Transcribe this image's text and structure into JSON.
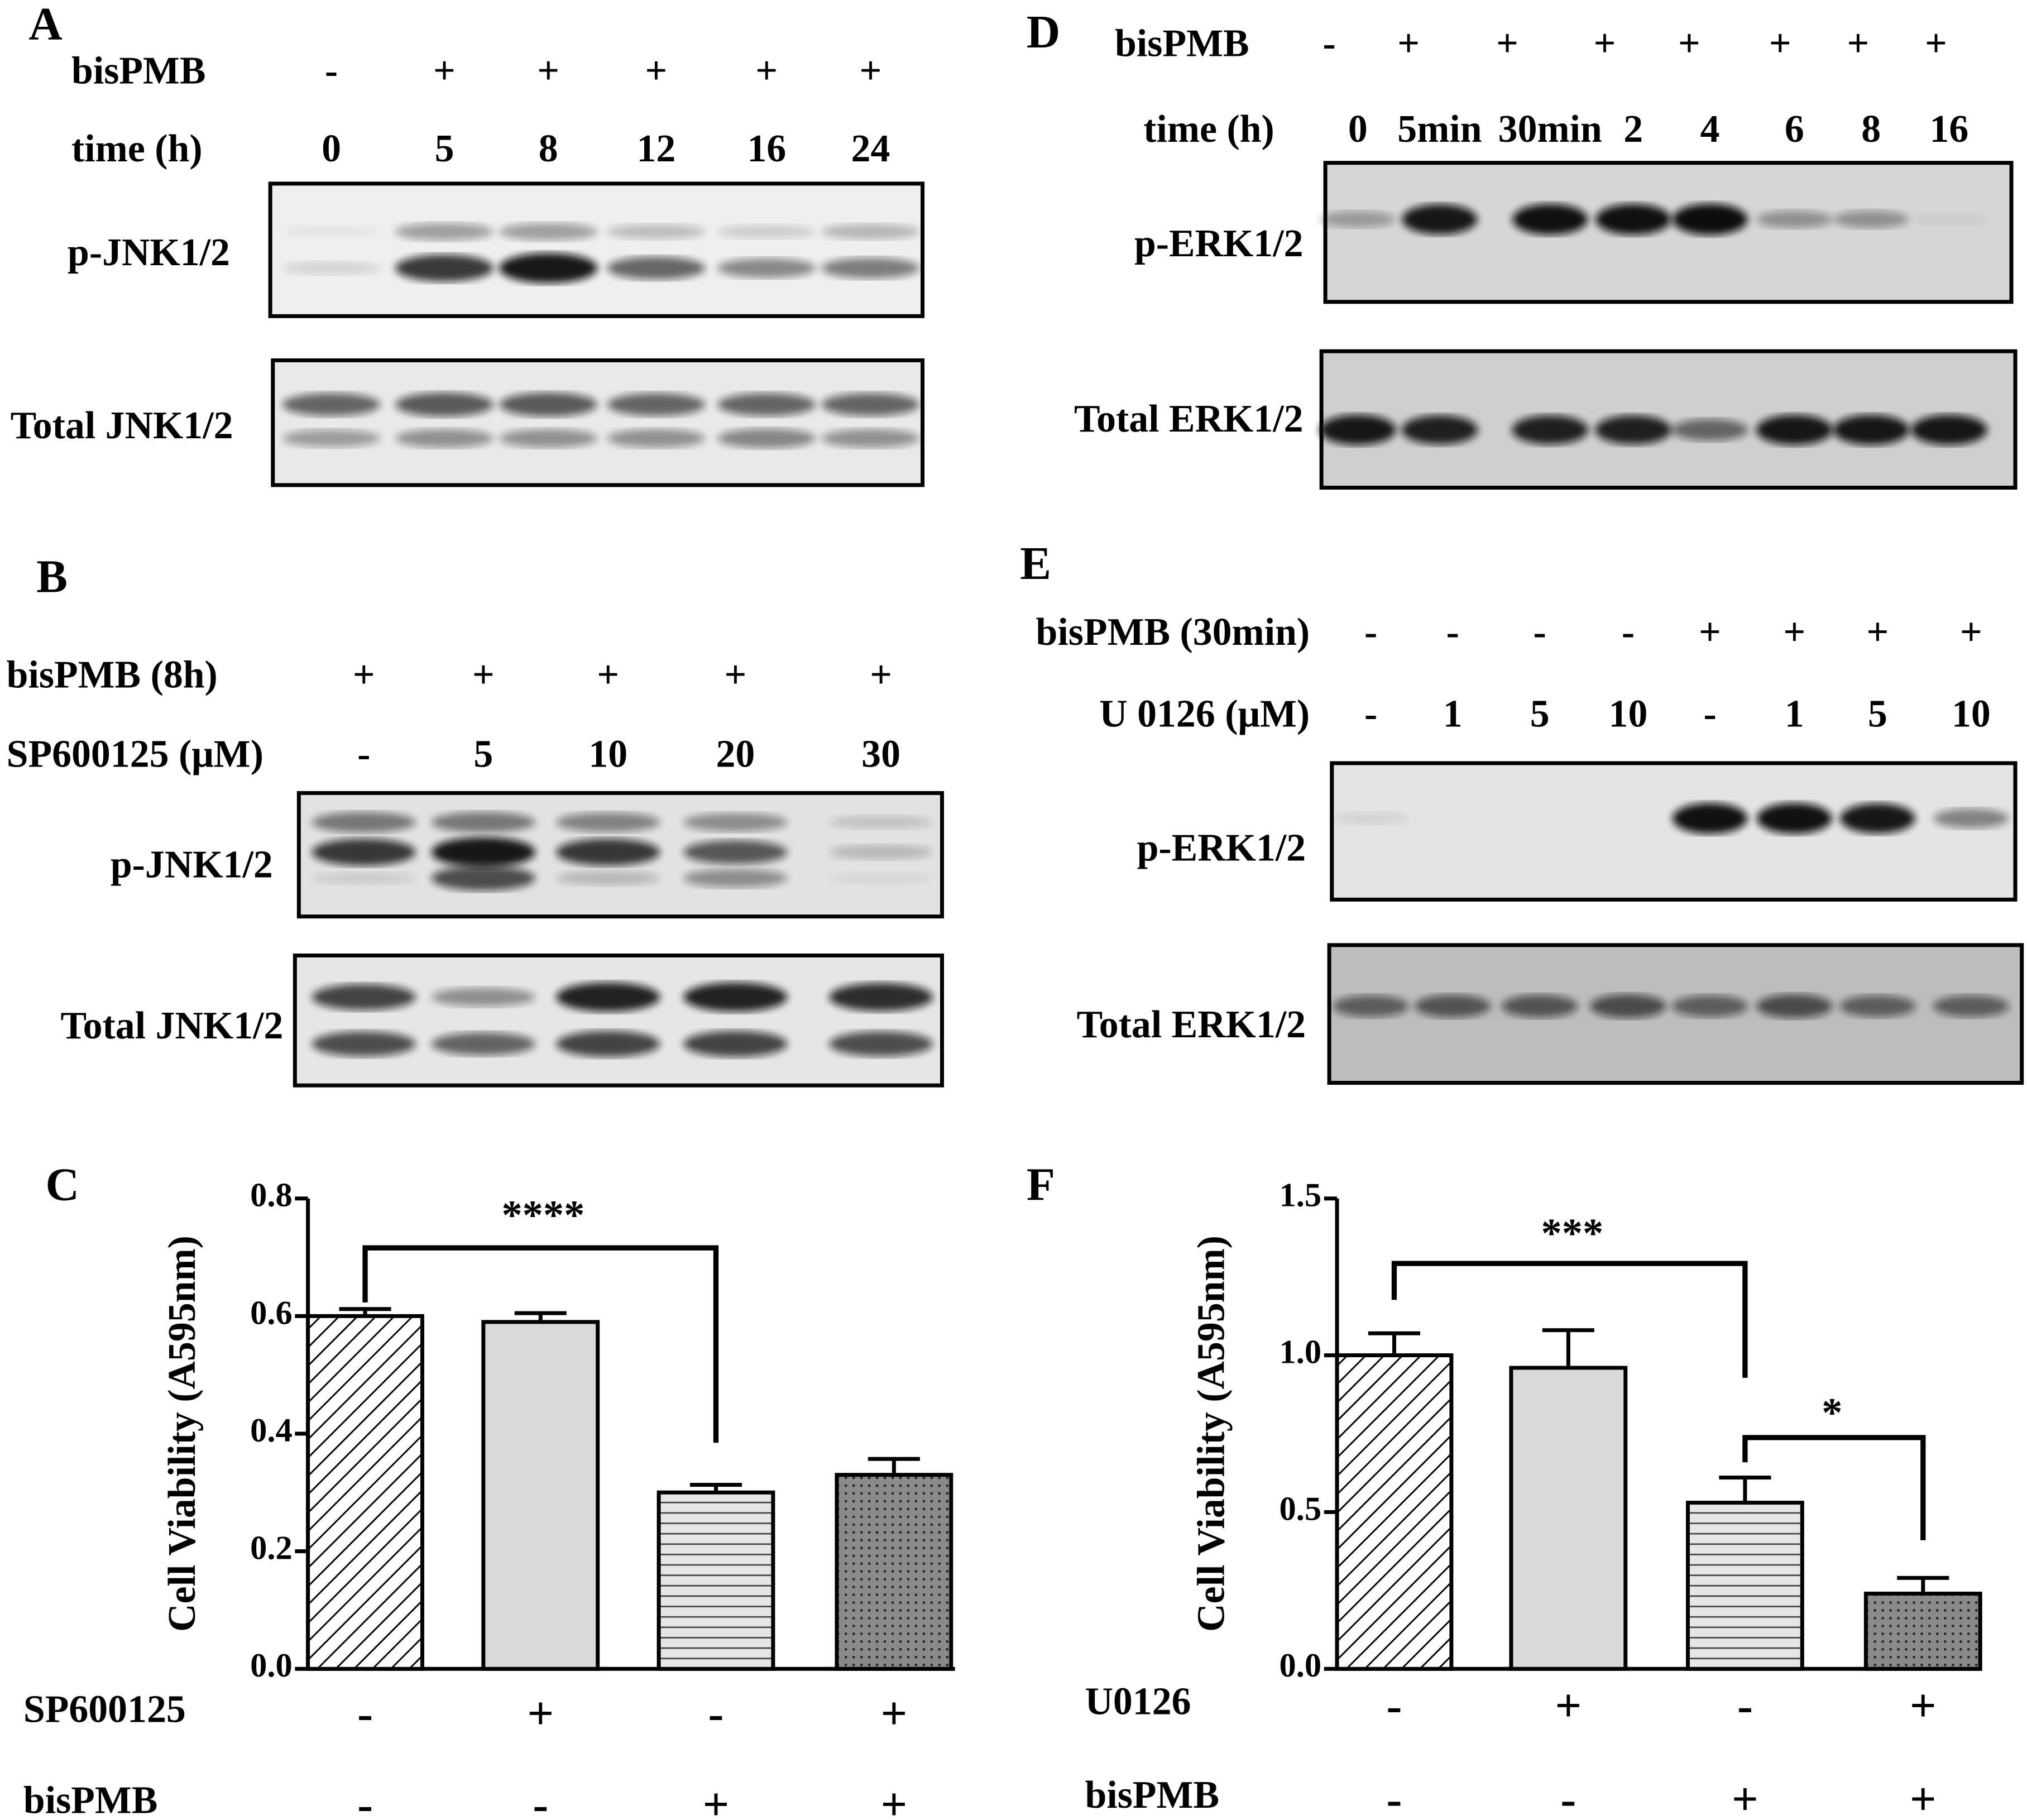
{
  "panels": [
    {
      "letter": "A",
      "rows": [
        {
          "name": "bisPMB",
          "labels": [
            "-",
            "+",
            "+",
            "+",
            "+",
            "+"
          ]
        },
        {
          "name": "time (h)",
          "labels": [
            "0",
            "5",
            "8",
            "12",
            "16",
            "24"
          ]
        }
      ],
      "blots": [
        "p-JNK1/2",
        "Total JNK1/2"
      ]
    },
    {
      "letter": "D",
      "rows": [
        {
          "name": "bisPMB",
          "labels": [
            "-",
            "+",
            "+",
            "+",
            "+",
            "+",
            "+",
            "+"
          ]
        },
        {
          "name": "time (h)",
          "labels": [
            "0",
            "5min",
            "30min",
            "2",
            "4",
            "6",
            "8",
            "16"
          ]
        }
      ],
      "blots": [
        "p-ERK1/2",
        "Total ERK1/2"
      ]
    },
    {
      "letter": "B",
      "rows": [
        {
          "name": "bisPMB (8h)",
          "labels": [
            "+",
            "+",
            "+",
            "+",
            "+"
          ]
        },
        {
          "name": "SP600125 (μM)",
          "labels": [
            "-",
            "5",
            "10",
            "20",
            "30"
          ]
        }
      ],
      "blots": [
        "p-JNK1/2",
        "Total JNK1/2"
      ]
    },
    {
      "letter": "E",
      "rows": [
        {
          "name": "bisPMB (30min)",
          "labels": [
            "-",
            "-",
            "-",
            "-",
            "+",
            "+",
            "+",
            "+"
          ]
        },
        {
          "name": "U 0126 (μM)",
          "labels": [
            "-",
            "1",
            "5",
            "10",
            "-",
            "1",
            "5",
            "10"
          ]
        }
      ],
      "blots": [
        "p-ERK1/2",
        "Total ERK1/2"
      ]
    }
  ],
  "chart_data": [
    {
      "type": "bar",
      "letter": "C",
      "y_label": "Cell Viability (A595nm)",
      "conditions": [
        {
          "name": "SP600125",
          "labels": [
            "-",
            "+",
            "-",
            "+"
          ]
        },
        {
          "name": "bisPMB",
          "labels": [
            "-",
            "-",
            "+",
            "+"
          ]
        }
      ],
      "values": [
        0.6,
        0.59,
        0.3,
        0.33
      ],
      "errors": [
        0.012,
        0.015,
        0.013,
        0.027
      ],
      "patterns": [
        "diagonal",
        "solid",
        "horizontal",
        "dotted"
      ],
      "ylim": [
        0,
        0.8
      ],
      "yticks": [
        {
          "value": 0,
          "label": "0.0"
        },
        0.2,
        0.4,
        0.6,
        0.8
      ],
      "annotations": [
        "****"
      ]
    },
    {
      "type": "bar",
      "letter": "F",
      "y_label": "Cell Viability (A595nm)",
      "conditions": [
        {
          "name": "U0126",
          "labels": [
            "-",
            "+",
            "-",
            "+"
          ]
        },
        {
          "name": "bisPMB",
          "labels": [
            "-",
            "-",
            "+",
            "+"
          ]
        }
      ],
      "values": [
        1.0,
        0.96,
        0.53,
        0.24
      ],
      "errors": [
        0.07,
        0.12,
        0.08,
        0.05
      ],
      "patterns": [
        "diagonal",
        "solid",
        "horizontal",
        "dotted"
      ],
      "ylim": [
        0,
        1.5
      ],
      "yticks": [
        {
          "value": 0,
          "label": "0.0"
        },
        0.5,
        {
          "value": 1,
          "label": "1.0"
        },
        1.5
      ],
      "annotations": [
        "***",
        "*"
      ]
    }
  ]
}
